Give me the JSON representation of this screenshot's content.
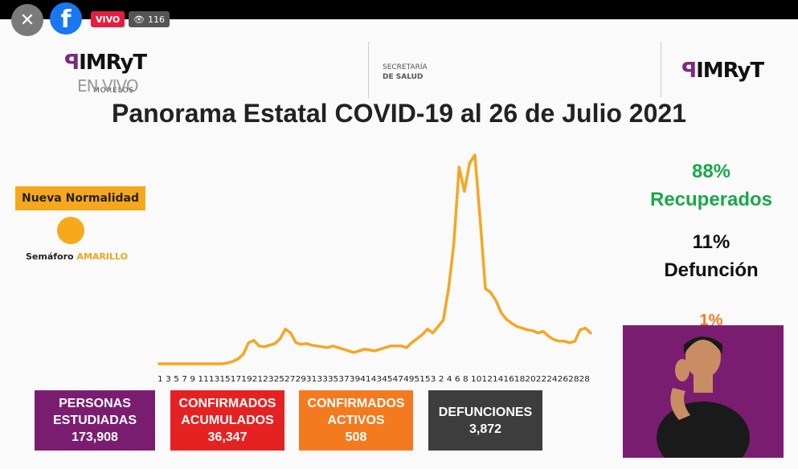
{
  "player": {
    "live_label": "VIVO",
    "view_count": "116",
    "close_icon": "close-icon",
    "facebook_icon": "facebook-icon",
    "eye_icon": "eye-icon"
  },
  "header": {
    "logo_left": "IMRyT",
    "logo_left_sub": "MORELOS",
    "watermark": "EN VIVO",
    "secretaria_line1": "SECRETARÍA",
    "secretaria_line2": "DE SALUD",
    "logo_right": "IMRyT"
  },
  "title": "Panorama Estatal COVID-19 al 26 de Julio 2021",
  "left_panel": {
    "status": "Nueva Normalidad",
    "semaforo_label": "Semáforo",
    "semaforo_color_name": "AMARILLO",
    "semaforo_color": "#f6a91a"
  },
  "stats": {
    "recuperados_pct": "88%",
    "recuperados_label": "Recuperados",
    "defuncion_pct": "11%",
    "defuncion_label": "Defunción",
    "activos_pct": "1%"
  },
  "chart_data": {
    "type": "line",
    "color": "#f5a623",
    "x_tick_labels": "1 3 5 7 9 11131517192123252729313335373941434547495153 2 4 6 8 1012141618202224262828",
    "values": [
      2,
      2,
      2,
      2,
      2,
      2,
      2,
      2,
      2,
      2,
      2,
      2,
      2,
      3,
      5,
      8,
      14,
      28,
      31,
      24,
      23,
      25,
      27,
      33,
      45,
      40,
      28,
      26,
      27,
      25,
      24,
      23,
      22,
      24,
      22,
      20,
      18,
      16,
      18,
      20,
      19,
      18,
      20,
      22,
      24,
      24,
      24,
      22,
      28,
      33,
      38,
      45,
      40,
      48,
      56,
      95,
      150,
      245,
      215,
      250,
      260,
      180,
      95,
      90,
      80,
      65,
      57,
      52,
      48,
      46,
      44,
      43,
      40,
      42,
      36,
      32,
      30,
      30,
      28,
      30,
      44,
      46,
      40
    ]
  },
  "summary_boxes": [
    {
      "label_line1": "PERSONAS",
      "label_line2": "ESTUDIADAS",
      "value": "173,908",
      "color": "#7a1d71"
    },
    {
      "label_line1": "CONFIRMADOS",
      "label_line2": "ACUMULADOS",
      "value": "36,347",
      "color": "#e52222"
    },
    {
      "label_line1": "CONFIRMADOS",
      "label_line2": "ACTIVOS",
      "value": "508",
      "color": "#f47a20"
    },
    {
      "label_line1": "DEFUNCIONES",
      "label_line2": "",
      "value": "3,872",
      "color": "#3d3d3d"
    }
  ],
  "interpreter": {
    "bg_color": "#7a1d71"
  }
}
